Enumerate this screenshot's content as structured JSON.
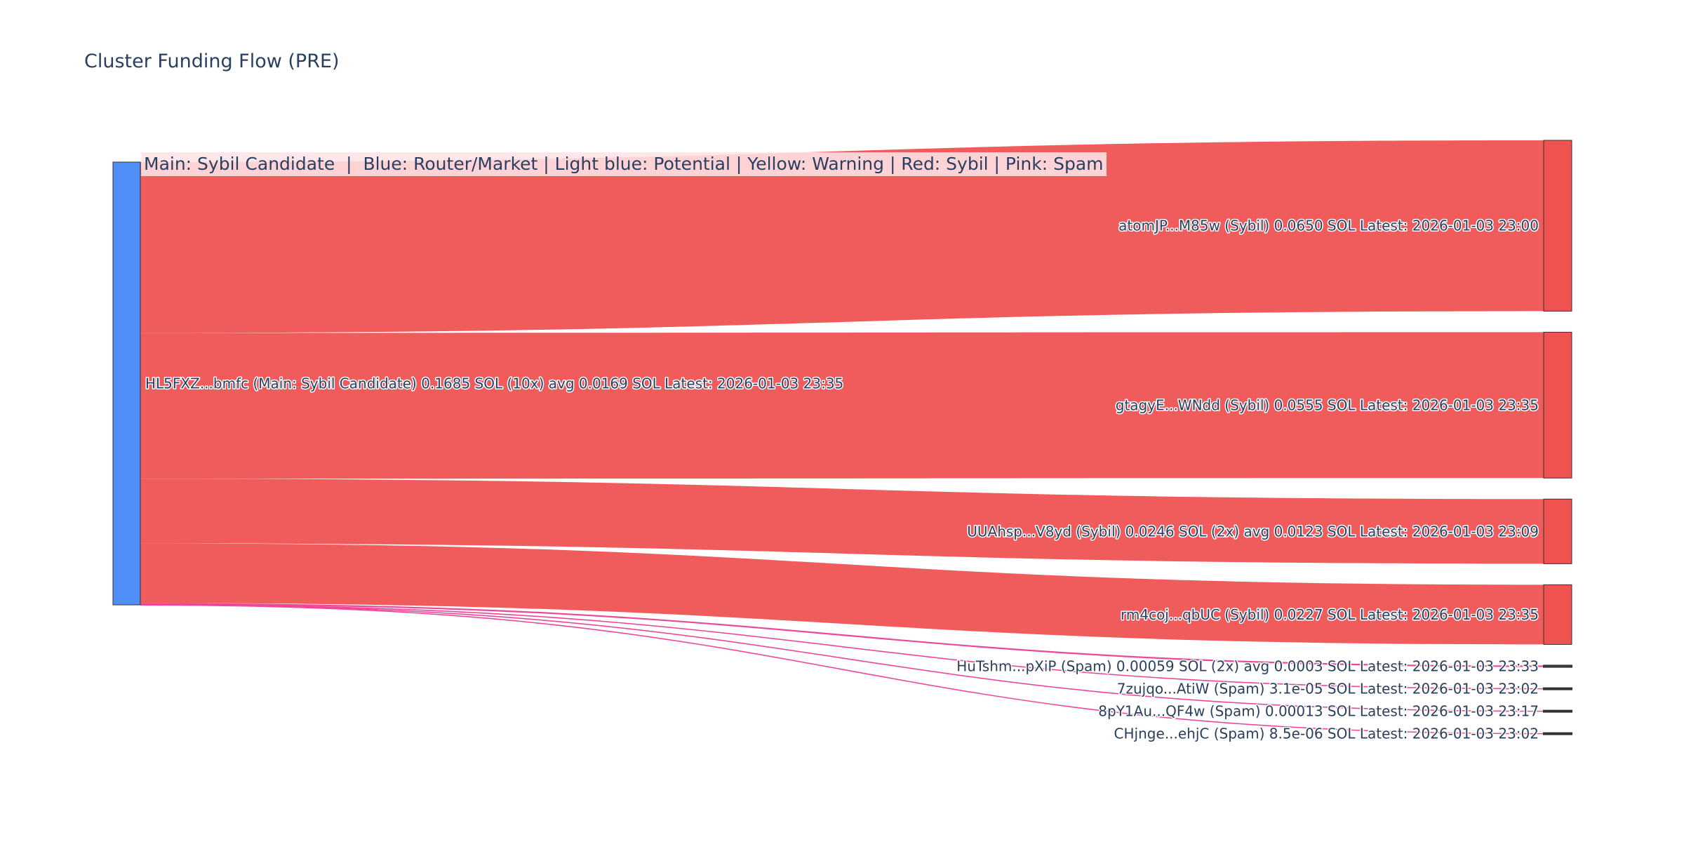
{
  "title": "Cluster Funding Flow (PRE)",
  "legend": "Main: Sybil Candidate  |  Blue: Router/Market | Light blue: Potential | Yellow: Warning | Red: Sybil | Pink: Spam",
  "colors": {
    "source_node": "#4f8ef7",
    "sybil": "#ef5350",
    "sybil_link": "#f05656",
    "spam_link": "#ec4899",
    "node_border": "#333333"
  },
  "chart_data": {
    "type": "sankey",
    "source": {
      "label": "HL5FXZ...bmfc (Main: Sybil Candidate) 0.1685 SOL (10x) avg 0.0169 SOL Latest: 2026-01-03 23:35",
      "value": 0.1685
    },
    "targets": [
      {
        "label": "atomJP...M85w (Sybil) 0.0650 SOL Latest: 2026-01-03 23:00",
        "value": 0.065,
        "category": "sybil"
      },
      {
        "label": "gtagyE...WNdd (Sybil) 0.0555 SOL Latest: 2026-01-03 23:35",
        "value": 0.0555,
        "category": "sybil"
      },
      {
        "label": "UUAhsp...V8yd (Sybil) 0.0246 SOL (2x) avg 0.0123 SOL Latest: 2026-01-03 23:09",
        "value": 0.0246,
        "category": "sybil"
      },
      {
        "label": "rm4coj...qbUC (Sybil) 0.0227 SOL Latest: 2026-01-03 23:35",
        "value": 0.0227,
        "category": "sybil"
      },
      {
        "label": "HuTshm...pXiP (Spam) 0.00059 SOL (2x) avg 0.0003 SOL Latest: 2026-01-03 23:33",
        "value": 0.00059,
        "category": "spam"
      },
      {
        "label": "7zujqo...AtiW (Spam) 3.1e-05 SOL Latest: 2026-01-03 23:02",
        "value": 3.1e-05,
        "category": "spam"
      },
      {
        "label": "8pY1Au...QF4w (Spam) 0.00013 SOL Latest: 2026-01-03 23:17",
        "value": 0.00013,
        "category": "spam"
      },
      {
        "label": "CHjnge...ehjC (Spam) 8.5e-06 SOL Latest: 2026-01-03 23:02",
        "value": 8.5e-06,
        "category": "spam"
      }
    ]
  }
}
